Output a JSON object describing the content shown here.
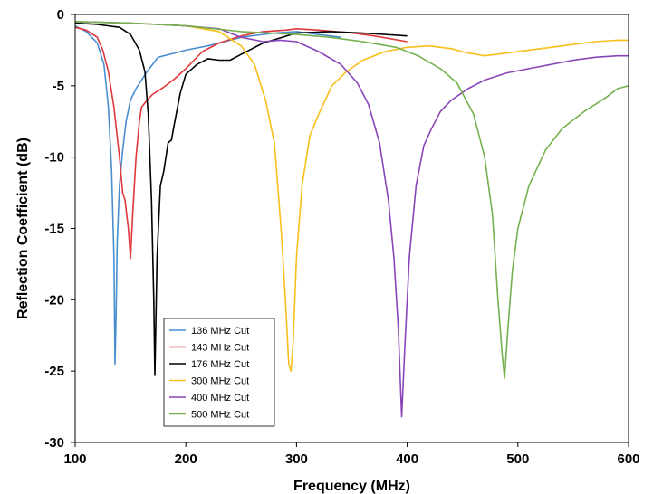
{
  "chart_data": {
    "type": "line",
    "title": "",
    "xlabel": "Frequency (MHz)",
    "ylabel": "Reflection Coefficient (dB)",
    "xlim": [
      100,
      600
    ],
    "ylim": [
      -30,
      0
    ],
    "xticks": [
      100,
      200,
      300,
      400,
      500,
      600
    ],
    "yticks": [
      0,
      -5,
      -10,
      -15,
      -20,
      -25,
      -30
    ],
    "grid": false,
    "legend_position": "bottom-left",
    "series": [
      {
        "name": "136 MHz Cut",
        "color": "#4a8ed0",
        "x": [
          100,
          110,
          120,
          126,
          130,
          133,
          135,
          136,
          137,
          138,
          140,
          143,
          146,
          150,
          155,
          160,
          165,
          170,
          175,
          180,
          190,
          200,
          220,
          250,
          280,
          300,
          320,
          340
        ],
        "y": [
          -0.8,
          -1.2,
          -2.0,
          -3.5,
          -6.5,
          -11.0,
          -17.0,
          -24.5,
          -21.0,
          -16.0,
          -12.0,
          -9.5,
          -7.5,
          -6.0,
          -5.2,
          -4.6,
          -4.0,
          -3.5,
          -3.0,
          -2.9,
          -2.7,
          -2.5,
          -2.2,
          -1.6,
          -1.3,
          -1.2,
          -1.4,
          -1.6
        ]
      },
      {
        "name": "143 MHz Cut",
        "color": "#e0383b",
        "x": [
          100,
          110,
          120,
          125,
          130,
          135,
          140,
          143,
          145,
          148,
          150,
          152,
          155,
          158,
          160,
          165,
          170,
          180,
          190,
          200,
          215,
          230,
          250,
          270,
          290,
          300,
          320,
          350,
          370,
          400
        ],
        "y": [
          -0.9,
          -1.1,
          -1.6,
          -2.5,
          -4.0,
          -6.5,
          -10.0,
          -12.5,
          -13.0,
          -15.0,
          -17.1,
          -14.0,
          -10.0,
          -7.5,
          -6.5,
          -6.0,
          -5.6,
          -5.1,
          -4.5,
          -3.8,
          -2.6,
          -2.0,
          -1.5,
          -1.2,
          -1.1,
          -1.0,
          -1.1,
          -1.3,
          -1.5,
          -1.9
        ]
      },
      {
        "name": "176 MHz Cut",
        "color": "#000000",
        "x": [
          100,
          120,
          140,
          150,
          158,
          163,
          166,
          169,
          171,
          172,
          174,
          177,
          180,
          184,
          187,
          190,
          195,
          200,
          210,
          220,
          230,
          240,
          250,
          270,
          300,
          330,
          360,
          400
        ],
        "y": [
          -0.6,
          -0.7,
          -0.9,
          -1.4,
          -2.5,
          -4.0,
          -7.0,
          -13.0,
          -20.0,
          -25.3,
          -17.0,
          -12.0,
          -11.0,
          -9.0,
          -8.8,
          -7.5,
          -5.5,
          -4.2,
          -3.5,
          -3.1,
          -3.2,
          -3.2,
          -2.8,
          -2.0,
          -1.3,
          -1.2,
          -1.3,
          -1.5
        ]
      },
      {
        "name": "300 MHz Cut",
        "color": "#f7be1c",
        "x": [
          100,
          150,
          200,
          230,
          250,
          262,
          272,
          280,
          286,
          290,
          293,
          295,
          297,
          300,
          305,
          312,
          320,
          332,
          345,
          360,
          380,
          400,
          420,
          440,
          455,
          470,
          490,
          510,
          530,
          550,
          570,
          590,
          600
        ],
        "y": [
          -0.5,
          -0.6,
          -0.8,
          -1.2,
          -2.2,
          -3.5,
          -6.0,
          -9.0,
          -15.0,
          -20.0,
          -24.5,
          -25.0,
          -23.0,
          -17.0,
          -12.0,
          -8.5,
          -7.0,
          -5.0,
          -4.0,
          -3.2,
          -2.6,
          -2.3,
          -2.2,
          -2.4,
          -2.7,
          -2.9,
          -2.7,
          -2.5,
          -2.3,
          -2.1,
          -1.9,
          -1.8,
          -1.8
        ]
      },
      {
        "name": "400 MHz Cut",
        "color": "#8a45b8",
        "x": [
          100,
          150,
          200,
          230,
          250,
          270,
          285,
          300,
          320,
          340,
          355,
          365,
          375,
          383,
          388,
          392,
          395,
          398,
          402,
          408,
          415,
          422,
          430,
          440,
          455,
          470,
          490,
          510,
          530,
          550,
          570,
          590,
          600
        ],
        "y": [
          -0.5,
          -0.6,
          -0.8,
          -1.0,
          -1.6,
          -1.9,
          -1.8,
          -1.9,
          -2.6,
          -3.5,
          -4.8,
          -6.3,
          -9.0,
          -13.0,
          -17.0,
          -22.0,
          -28.2,
          -23.0,
          -17.0,
          -12.0,
          -9.2,
          -8.0,
          -6.8,
          -6.0,
          -5.2,
          -4.6,
          -4.1,
          -3.8,
          -3.5,
          -3.2,
          -3.0,
          -2.9,
          -2.9
        ]
      },
      {
        "name": "500 MHz Cut",
        "color": "#74b14e",
        "x": [
          100,
          150,
          200,
          250,
          300,
          330,
          360,
          390,
          410,
          430,
          445,
          460,
          470,
          477,
          482,
          486,
          488,
          491,
          495,
          500,
          510,
          525,
          540,
          560,
          580,
          590,
          600
        ],
        "y": [
          -0.5,
          -0.6,
          -0.8,
          -1.2,
          -1.4,
          -1.6,
          -1.9,
          -2.3,
          -2.9,
          -3.8,
          -4.8,
          -7.0,
          -10.0,
          -14.0,
          -20.0,
          -24.0,
          -25.5,
          -22.0,
          -18.0,
          -15.0,
          -12.0,
          -9.5,
          -8.0,
          -6.8,
          -5.8,
          -5.2,
          -5.0
        ]
      }
    ]
  }
}
